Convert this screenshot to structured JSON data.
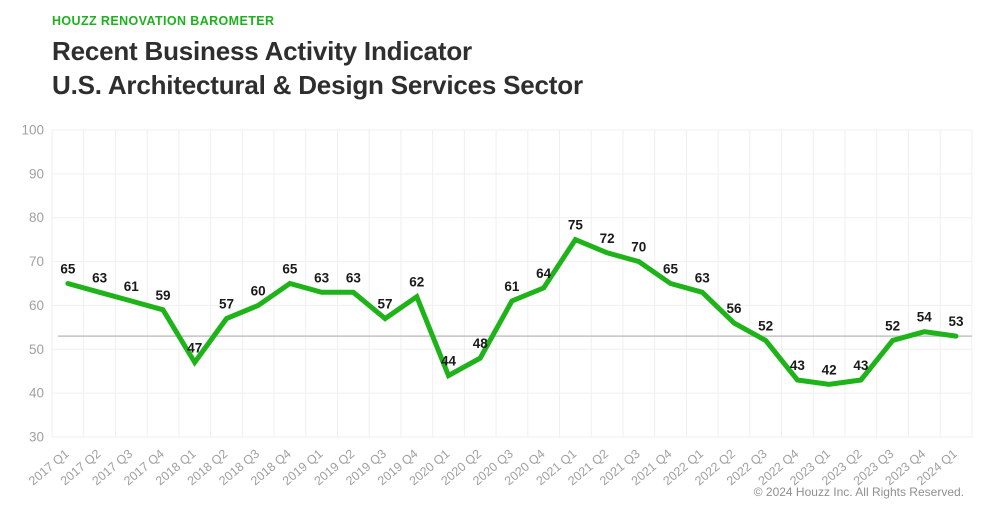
{
  "header": {
    "eyebrow": "HOUZZ RENOVATION BAROMETER",
    "title_line1": "Recent Business Activity Indicator",
    "title_line2": "U.S. Architectural & Design Services Sector"
  },
  "footer": {
    "copyright": "© 2024 Houzz Inc. All Rights Reserved."
  },
  "colors": {
    "accent_green": "#1db21d",
    "line_green": "#1fb31a",
    "grid": "#efefef",
    "reference_line": "#c2c2c2",
    "axis_text": "#a0a0a0",
    "point_label_text": "#1a1a1a",
    "title_text": "#2e2e2e",
    "footer_text": "#8f8f8f",
    "background": "#ffffff"
  },
  "chart_data": {
    "type": "line",
    "title": "Recent Business Activity Indicator",
    "subtitle": "U.S. Architectural & Design Services Sector",
    "categories": [
      "2017 Q1",
      "2017 Q2",
      "2017 Q3",
      "2017 Q4",
      "2018 Q1",
      "2018 Q2",
      "2018 Q3",
      "2018 Q4",
      "2019 Q1",
      "2019 Q2",
      "2019 Q3",
      "2019 Q4",
      "2020 Q1",
      "2020 Q2",
      "2020 Q3",
      "2020 Q4",
      "2021 Q1",
      "2021 Q2",
      "2021 Q3",
      "2021 Q4",
      "2022 Q1",
      "2022 Q2",
      "2022 Q3",
      "2022 Q4",
      "2023 Q1",
      "2023 Q2",
      "2023 Q3",
      "2023 Q4",
      "2024 Q1"
    ],
    "values": [
      65,
      63,
      61,
      59,
      47,
      57,
      60,
      65,
      63,
      63,
      57,
      62,
      44,
      48,
      61,
      64,
      75,
      72,
      70,
      65,
      63,
      56,
      52,
      43,
      42,
      43,
      52,
      54,
      53
    ],
    "xlabel": "",
    "ylabel": "",
    "ylim": [
      30,
      100
    ],
    "yticks": [
      100,
      90,
      80,
      70,
      60,
      50,
      40,
      30
    ],
    "grid": true,
    "legend_position": "none",
    "reference_line_value": 53,
    "point_labels_shown": true
  }
}
